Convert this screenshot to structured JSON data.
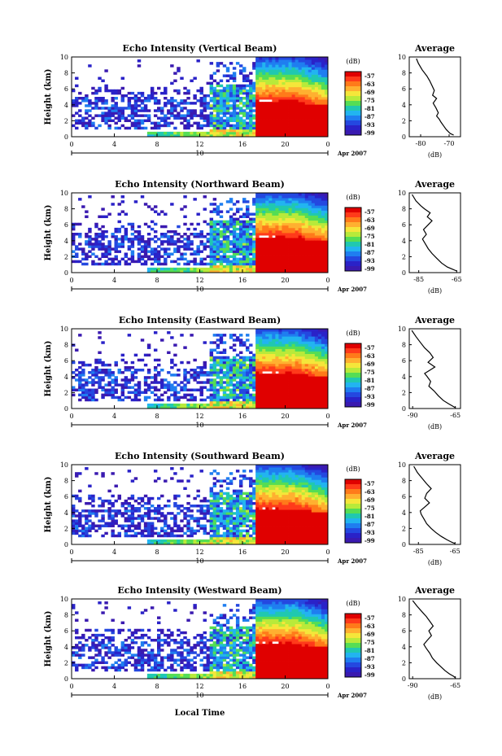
{
  "figure": {
    "xlabel_bottom": "Local Time",
    "date_label": "Apr 2007"
  },
  "colorbar": {
    "unit": "(dB)",
    "ticks": [
      "-57",
      "-63",
      "-69",
      "-75",
      "-81",
      "-87",
      "-93",
      "-99"
    ],
    "colors": [
      "#e00000",
      "#ff3a1a",
      "#ff7a1a",
      "#ffb030",
      "#f5e63a",
      "#b8ea3a",
      "#55dd55",
      "#20c8b0",
      "#22b4f0",
      "#1f7ef0",
      "#2448e0",
      "#2a22c8",
      "#3a1ab0"
    ]
  },
  "chart_data": [
    {
      "type": "heatmap",
      "title": "Echo Intensity (Vertical Beam)",
      "ylabel": "Height (km)",
      "x_ticks": [
        "0",
        "4",
        "8",
        "12",
        "16",
        "20",
        "0"
      ],
      "y_ticks": [
        "0",
        "2",
        "4",
        "6",
        "8",
        "10"
      ],
      "day_marker": "10",
      "xlim": [
        0,
        24
      ],
      "ylim": [
        0,
        10
      ]
    },
    {
      "type": "line",
      "title": "Average",
      "xlabel": "(dB)",
      "x_ticks": [
        "-80",
        "-70"
      ],
      "y_ticks": [
        "0",
        "2",
        "4",
        "6",
        "8",
        "10"
      ],
      "xlim": [
        -84,
        -66
      ],
      "ylim": [
        0,
        10
      ],
      "x": [
        -81.5,
        -80.8,
        -79.5,
        -77.8,
        -76.8,
        -76.0,
        -75.2,
        -75.8,
        -74.4,
        -75.6,
        -74.6,
        -73.8,
        -74.4,
        -73.5,
        -72.8,
        -71.8,
        -71.0,
        -70.2,
        -69.6,
        -68.4
      ],
      "y": [
        9.8,
        9.2,
        8.4,
        7.6,
        7.0,
        6.4,
        5.8,
        5.2,
        4.8,
        4.2,
        3.6,
        3.0,
        2.6,
        2.2,
        1.8,
        1.3,
        0.9,
        0.6,
        0.4,
        0.2
      ]
    },
    {
      "type": "heatmap",
      "title": "Echo Intensity (Northward Beam)",
      "ylabel": "Height (km)",
      "x_ticks": [
        "0",
        "4",
        "8",
        "12",
        "16",
        "20",
        "0"
      ],
      "y_ticks": [
        "0",
        "2",
        "4",
        "6",
        "8",
        "10"
      ],
      "day_marker": "10",
      "xlim": [
        0,
        24
      ],
      "ylim": [
        0,
        10
      ]
    },
    {
      "type": "line",
      "title": "Average",
      "xlabel": "(dB)",
      "x_ticks": [
        "-85",
        "-65"
      ],
      "y_ticks": [
        "0",
        "2",
        "4",
        "6",
        "8",
        "10"
      ],
      "xlim": [
        -90,
        -63
      ],
      "ylim": [
        0,
        10
      ],
      "x": [
        -88.5,
        -86.5,
        -84.0,
        -82.0,
        -79.0,
        -80.5,
        -78.0,
        -80.0,
        -82.5,
        -81.0,
        -83.0,
        -81.5,
        -80.0,
        -78.0,
        -75.5,
        -73.0,
        -70.0,
        -67.0,
        -65.0
      ],
      "y": [
        9.8,
        9.0,
        8.4,
        8.0,
        7.5,
        7.0,
        6.5,
        6.0,
        5.4,
        4.8,
        4.2,
        3.6,
        3.0,
        2.4,
        1.8,
        1.2,
        0.7,
        0.4,
        0.2
      ]
    },
    {
      "type": "heatmap",
      "title": "Echo Intensity (Eastward Beam)",
      "ylabel": "Height (km)",
      "x_ticks": [
        "0",
        "4",
        "8",
        "12",
        "16",
        "20",
        "0"
      ],
      "y_ticks": [
        "0",
        "2",
        "4",
        "6",
        "8",
        "10"
      ],
      "day_marker": "10",
      "xlim": [
        0,
        24
      ],
      "ylim": [
        0,
        10
      ]
    },
    {
      "type": "line",
      "title": "Average",
      "xlabel": "(dB)",
      "x_ticks": [
        "-90",
        "-65"
      ],
      "y_ticks": [
        "0",
        "2",
        "4",
        "6",
        "8",
        "10"
      ],
      "xlim": [
        -92,
        -62
      ],
      "ylim": [
        0,
        10
      ],
      "x": [
        -90.5,
        -88.0,
        -85.5,
        -83.0,
        -80.0,
        -78.0,
        -81.0,
        -77.0,
        -80.0,
        -83.0,
        -81.5,
        -79.5,
        -80.5,
        -77.5,
        -75.0,
        -72.0,
        -69.0,
        -66.5,
        -65.0
      ],
      "y": [
        9.8,
        9.0,
        8.3,
        7.6,
        7.0,
        6.4,
        5.8,
        5.2,
        4.8,
        4.4,
        4.0,
        3.4,
        2.8,
        2.2,
        1.6,
        1.0,
        0.6,
        0.3,
        0.1
      ]
    },
    {
      "type": "heatmap",
      "title": "Echo Intensity (Southward Beam)",
      "ylabel": "Height (km)",
      "x_ticks": [
        "0",
        "4",
        "8",
        "12",
        "16",
        "20",
        "0"
      ],
      "y_ticks": [
        "0",
        "2",
        "4",
        "6",
        "8",
        "10"
      ],
      "day_marker": "10",
      "xlim": [
        0,
        24
      ],
      "ylim": [
        0,
        10
      ]
    },
    {
      "type": "line",
      "title": "Average",
      "xlabel": "(dB)",
      "x_ticks": [
        "-85",
        "-65"
      ],
      "y_ticks": [
        "0",
        "2",
        "4",
        "6",
        "8",
        "10"
      ],
      "xlim": [
        -90,
        -62
      ],
      "ylim": [
        0,
        10
      ],
      "x": [
        -87.5,
        -85.5,
        -83.0,
        -80.5,
        -78.0,
        -80.5,
        -81.5,
        -79.0,
        -82.0,
        -84.0,
        -83.5,
        -82.0,
        -80.5,
        -78.0,
        -75.5,
        -72.5,
        -69.5,
        -67.0,
        -65.0
      ],
      "y": [
        9.8,
        9.0,
        8.3,
        7.6,
        7.0,
        6.4,
        5.8,
        5.2,
        4.6,
        4.2,
        3.8,
        3.2,
        2.6,
        2.0,
        1.5,
        1.0,
        0.6,
        0.3,
        0.1
      ]
    },
    {
      "type": "heatmap",
      "title": "Echo Intensity (Westward Beam)",
      "ylabel": "Height (km)",
      "x_ticks": [
        "0",
        "4",
        "8",
        "12",
        "16",
        "20",
        "0"
      ],
      "y_ticks": [
        "0",
        "2",
        "4",
        "6",
        "8",
        "10"
      ],
      "day_marker": "10",
      "xlim": [
        0,
        24
      ],
      "ylim": [
        0,
        10
      ]
    },
    {
      "type": "line",
      "title": "Average",
      "xlabel": "(dB)",
      "x_ticks": [
        "-90",
        "-65"
      ],
      "y_ticks": [
        "0",
        "2",
        "4",
        "6",
        "8",
        "10"
      ],
      "xlim": [
        -92,
        -62
      ],
      "ylim": [
        0,
        10
      ],
      "x": [
        -90.0,
        -87.5,
        -85.0,
        -82.0,
        -80.0,
        -78.0,
        -80.5,
        -79.0,
        -81.5,
        -83.5,
        -82.0,
        -80.0,
        -78.5,
        -76.0,
        -73.5,
        -71.0,
        -68.5,
        -66.0,
        -65.0
      ],
      "y": [
        9.8,
        9.1,
        8.5,
        7.8,
        7.2,
        6.6,
        6.0,
        5.4,
        4.8,
        4.3,
        3.8,
        3.2,
        2.6,
        2.0,
        1.5,
        1.0,
        0.6,
        0.3,
        0.1
      ]
    }
  ]
}
